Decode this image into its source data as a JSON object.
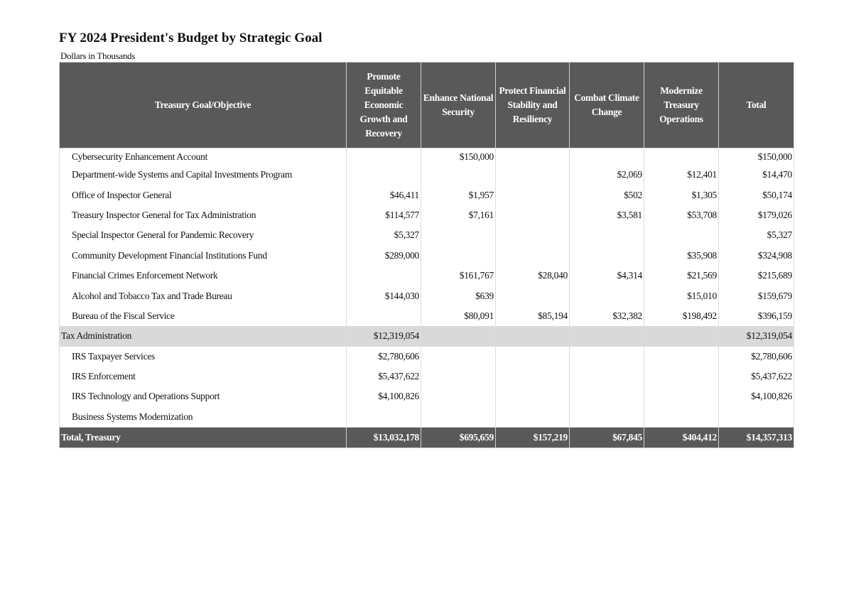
{
  "title": "FY 2024 President's Budget by Strategic Goal",
  "subtitle": "Dollars in Thousands",
  "columns": [
    "Treasury Goal/Objective",
    "Promote Equitable Economic Growth and Recovery",
    "Enhance National Security",
    "Protect Financial Stability and Resiliency",
    "Combat Climate Change",
    "Modernize Treasury Operations",
    "Total"
  ],
  "rows": [
    {
      "type": "item",
      "label": "Cybersecurity Enhancement Account",
      "values": [
        "",
        "$150,000",
        "",
        "",
        "",
        "$150,000"
      ]
    },
    {
      "type": "item",
      "label": "Department-wide Systems and Capital Investments Program",
      "values": [
        "",
        "",
        "",
        "$2,069",
        "$12,401",
        "$14,470"
      ]
    },
    {
      "type": "item",
      "label": "Office of Inspector General",
      "values": [
        "$46,411",
        "$1,957",
        "",
        "$502",
        "$1,305",
        "$50,174"
      ]
    },
    {
      "type": "item",
      "label": "Treasury Inspector General for Tax Administration",
      "values": [
        "$114,577",
        "$7,161",
        "",
        "$3,581",
        "$53,708",
        "$179,026"
      ]
    },
    {
      "type": "item",
      "label": "Special Inspector General for Pandemic Recovery",
      "values": [
        "$5,327",
        "",
        "",
        "",
        "",
        "$5,327"
      ]
    },
    {
      "type": "item",
      "label": "Community Development Financial Institutions Fund",
      "values": [
        "$289,000",
        "",
        "",
        "",
        "$35,908",
        "$324,908"
      ]
    },
    {
      "type": "item",
      "label": "Financial Crimes Enforcement Network",
      "values": [
        "",
        "$161,767",
        "$28,040",
        "$4,314",
        "$21,569",
        "$215,689"
      ]
    },
    {
      "type": "item",
      "label": "Alcohol and Tobacco Tax and Trade Bureau",
      "values": [
        "$144,030",
        "$639",
        "",
        "",
        "$15,010",
        "$159,679"
      ]
    },
    {
      "type": "item",
      "label": "Bureau of the Fiscal Service",
      "values": [
        "",
        "$80,091",
        "$85,194",
        "$32,382",
        "$198,492",
        "$396,159"
      ]
    },
    {
      "type": "sub",
      "label": "Tax Administration",
      "values": [
        "$12,319,054",
        "",
        "",
        "",
        "",
        "$12,319,054"
      ]
    },
    {
      "type": "item",
      "label": "IRS Taxpayer Services",
      "values": [
        "$2,780,606",
        "",
        "",
        "",
        "",
        "$2,780,606"
      ]
    },
    {
      "type": "item",
      "label": "IRS Enforcement",
      "values": [
        "$5,437,622",
        "",
        "",
        "",
        "",
        "$5,437,622"
      ]
    },
    {
      "type": "item",
      "label": "IRS Technology and Operations Support",
      "values": [
        "$4,100,826",
        "",
        "",
        "",
        "",
        "$4,100,826"
      ]
    },
    {
      "type": "item",
      "label": "Business Systems Modernization",
      "values": [
        "",
        "",
        "",
        "",
        "",
        ""
      ]
    },
    {
      "type": "total",
      "label": "Total, Treasury",
      "values": [
        "$13,032,178",
        "$695,659",
        "$157,219",
        "$67,845",
        "$404,412",
        "$14,357,313"
      ]
    }
  ]
}
